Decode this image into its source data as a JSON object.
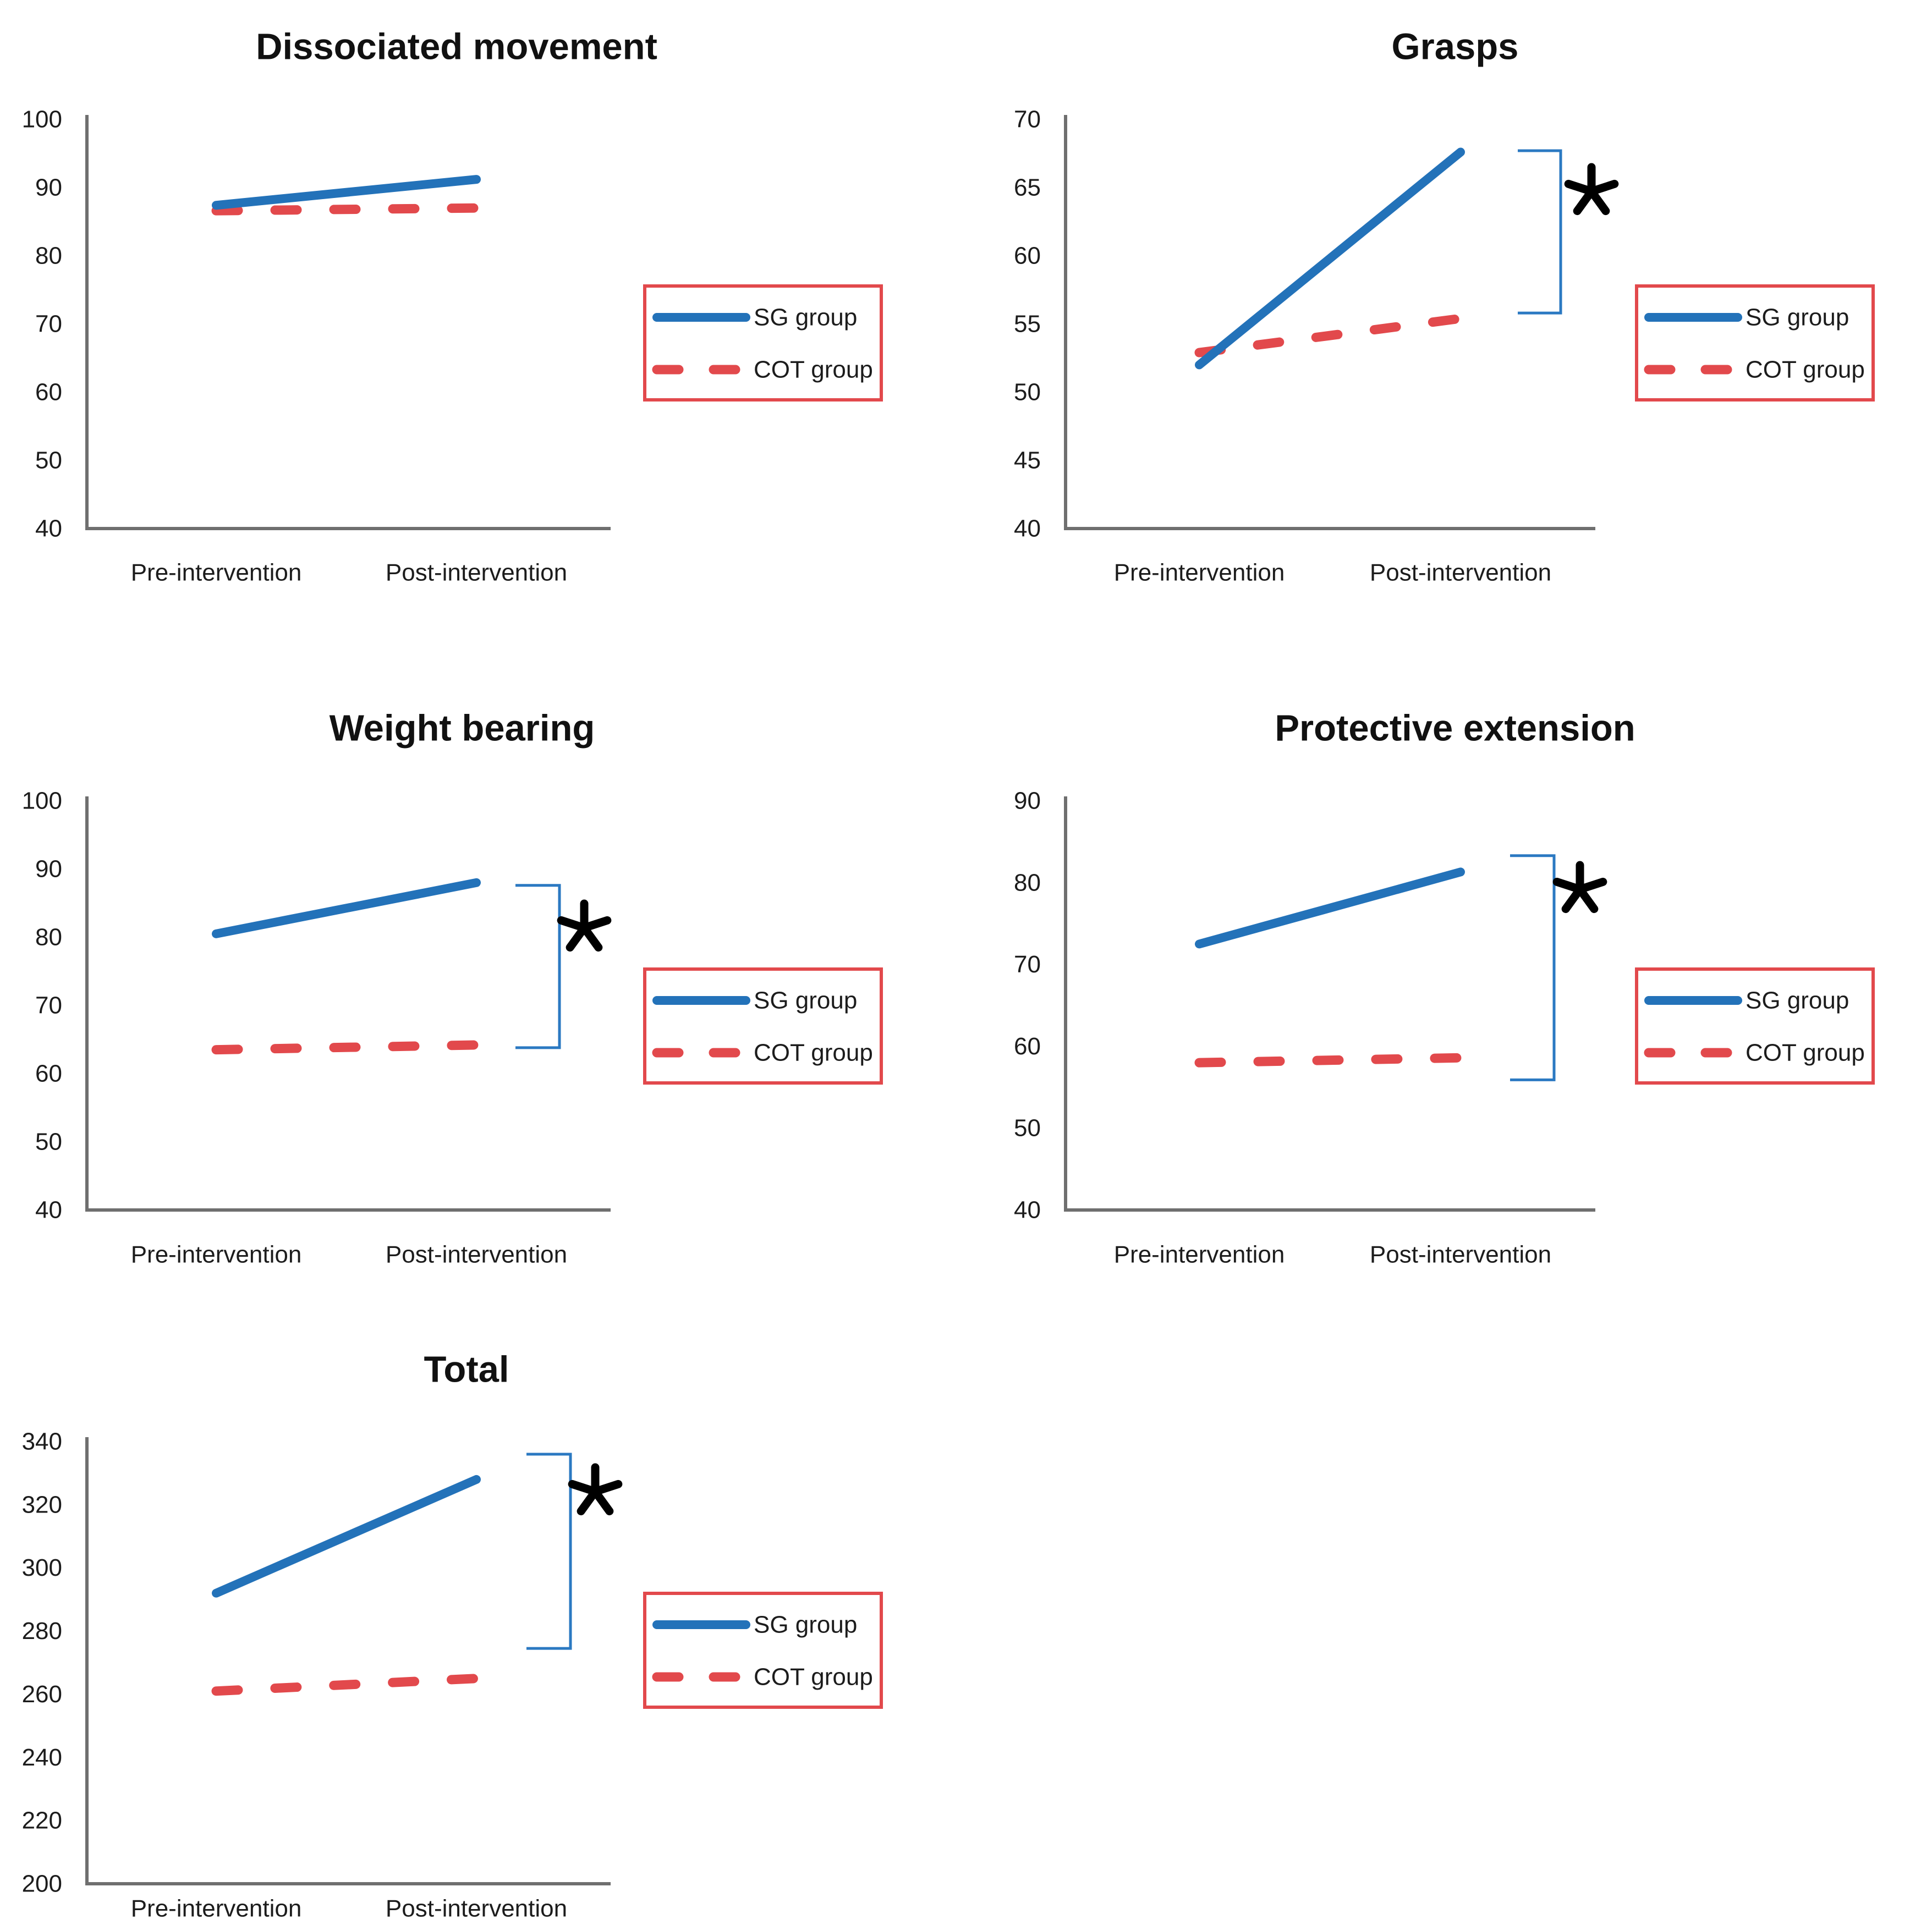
{
  "figure": {
    "background": "#FFFFFF",
    "colors": {
      "sg_line": "#2372B9",
      "cot_line": "#E2494C",
      "axis": "#6F6F6F",
      "text": "#1C1C1C",
      "title": "#111111",
      "legend_border": "#E2494C",
      "bracket": "#2B79C2",
      "asterisk": "#000000"
    },
    "legend": {
      "sg_label": "SG group",
      "cot_label": "COT group"
    },
    "categories": [
      "Pre-intervention",
      "Post-intervention"
    ]
  },
  "chart_data": [
    {
      "type": "line",
      "title": "Dissociated movement",
      "categories": [
        "Pre-intervention",
        "Post-intervention"
      ],
      "ylim": [
        40,
        100
      ],
      "yticks": [
        40,
        50,
        60,
        70,
        80,
        90,
        100
      ],
      "grid": false,
      "legend_position": "right-of-plot",
      "series": [
        {
          "name": "SG group",
          "style": "solid",
          "values": [
            87.4,
            91.2
          ]
        },
        {
          "name": "COT group",
          "style": "dashed",
          "values": [
            86.6,
            87.0
          ]
        }
      ],
      "significance": null
    },
    {
      "type": "line",
      "title": "Grasps",
      "categories": [
        "Pre-intervention",
        "Post-intervention"
      ],
      "ylim": [
        40,
        70
      ],
      "yticks": [
        40,
        45,
        50,
        55,
        60,
        65,
        70
      ],
      "grid": false,
      "legend_position": "right-of-plot",
      "series": [
        {
          "name": "SG group",
          "style": "solid",
          "values": [
            52.0,
            67.6
          ]
        },
        {
          "name": "COT group",
          "style": "dashed",
          "values": [
            52.9,
            55.4
          ]
        }
      ],
      "significance": {
        "label": "*",
        "from": 67.7,
        "to": 55.8
      }
    },
    {
      "type": "line",
      "title": "Weight bearing",
      "categories": [
        "Pre-intervention",
        "Post-intervention"
      ],
      "ylim": [
        40,
        100
      ],
      "yticks": [
        40,
        50,
        60,
        70,
        80,
        90,
        100
      ],
      "grid": false,
      "legend_position": "right-of-plot",
      "series": [
        {
          "name": "SG group",
          "style": "solid",
          "values": [
            80.5,
            88.0
          ]
        },
        {
          "name": "COT group",
          "style": "dashed",
          "values": [
            63.5,
            64.2
          ]
        }
      ],
      "significance": {
        "label": "*",
        "from": 87.6,
        "to": 63.8
      }
    },
    {
      "type": "line",
      "title": "Protective extension",
      "categories": [
        "Pre-intervention",
        "Post-intervention"
      ],
      "ylim": [
        40,
        90
      ],
      "yticks": [
        40,
        50,
        60,
        70,
        80,
        90
      ],
      "grid": false,
      "legend_position": "right-of-plot",
      "series": [
        {
          "name": "SG group",
          "style": "solid",
          "values": [
            72.5,
            81.3
          ]
        },
        {
          "name": "COT group",
          "style": "dashed",
          "values": [
            58.0,
            58.6
          ]
        }
      ],
      "significance": {
        "label": "*",
        "from": 83.3,
        "to": 55.9
      }
    },
    {
      "type": "line",
      "title": "Total",
      "categories": [
        "Pre-intervention",
        "Post-intervention"
      ],
      "ylim": [
        200,
        340
      ],
      "yticks": [
        200,
        220,
        240,
        260,
        280,
        300,
        320,
        340
      ],
      "grid": false,
      "legend_position": "right-of-plot",
      "series": [
        {
          "name": "SG group",
          "style": "solid",
          "values": [
            292,
            328
          ]
        },
        {
          "name": "COT group",
          "style": "dashed",
          "values": [
            261,
            265
          ]
        }
      ],
      "significance": {
        "label": "*",
        "from": 336.0,
        "to": 274.5
      }
    }
  ]
}
